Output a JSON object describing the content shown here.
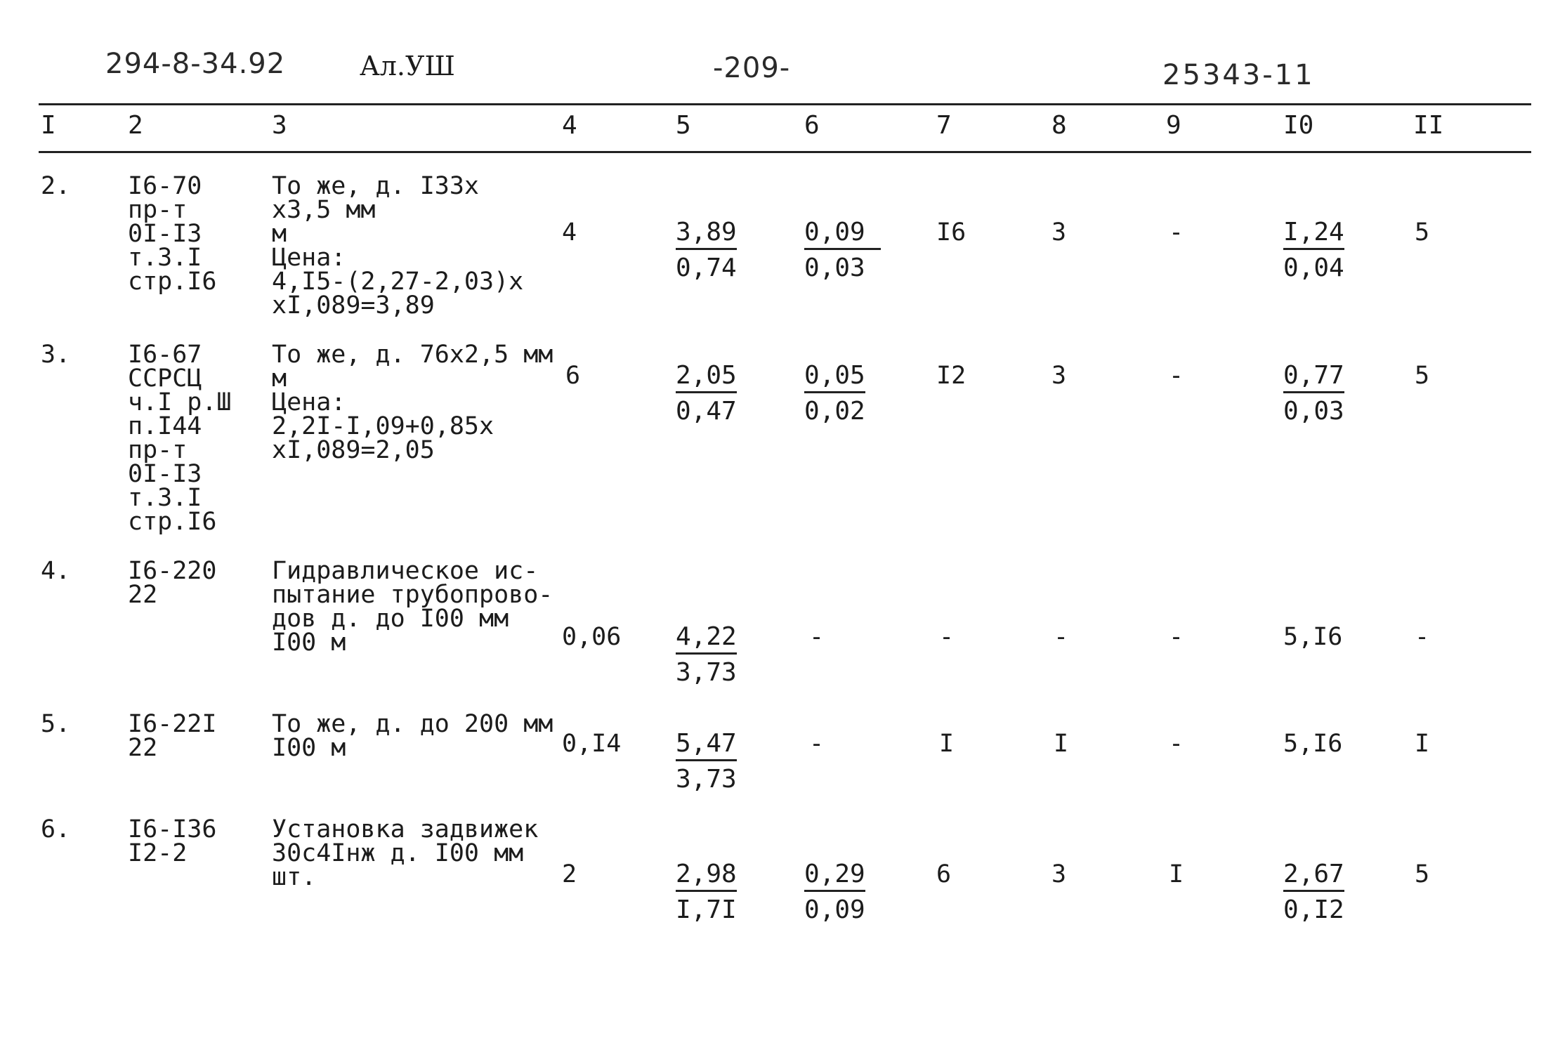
{
  "header": {
    "doc_code": "294-8-34.92",
    "album": "Ал.УШ",
    "page_number": "-209-",
    "sheet_code": "25343-11"
  },
  "columns": [
    "I",
    "2",
    "3",
    "4",
    "5",
    "6",
    "7",
    "8",
    "9",
    "I0",
    "II"
  ],
  "rows": [
    {
      "num": "2.",
      "code": "I6-70\nпр-т\n0I-I3\nт.3.I\nстр.I6",
      "desc": "То же, д. I33х\nх3,5 мм\nм\nЦена:\n4,I5-(2,27-2,03)х\nхI,089=3,89",
      "qty": "4",
      "c5_top": "3,89",
      "c5_bot": "0,74",
      "c6_top": "0,09",
      "c6_bot": "0,03",
      "c7": "I6",
      "c8": "3",
      "c9": "-",
      "c10_top": "I,24",
      "c10_bot": "0,04",
      "c11": "5"
    },
    {
      "num": "3.",
      "code": "I6-67\nССРСЦ\nч.I р.Ш\nп.I44\nпр-т\n0I-I3\nт.3.I\nстр.I6",
      "desc": "То же, д. 76х2,5 мм\nм\nЦена:\n2,2I-I,09+0,85х\nхI,089=2,05",
      "qty": "6",
      "c5_top": "2,05",
      "c5_bot": "0,47",
      "c6_top": "0,05",
      "c6_bot": "0,02",
      "c7": "I2",
      "c8": "3",
      "c9": "-",
      "c10_top": "0,77",
      "c10_bot": "0,03",
      "c11": "5"
    },
    {
      "num": "4.",
      "code": "I6-220\n22",
      "desc": "Гидравлическое ис-\nпытание трубопрово-\nдов д. до I00 мм\nI00 м",
      "qty": "0,06",
      "c5_top": "4,22",
      "c5_bot": "3,73",
      "c6": "-",
      "c7": "-",
      "c8": "-",
      "c9": "-",
      "c10": "5,I6",
      "c11": "-"
    },
    {
      "num": "5.",
      "code": "I6-22I\n22",
      "desc": "То же, д. до 200 мм\nI00 м",
      "qty": "0,I4",
      "c5_top": "5,47",
      "c5_bot": "3,73",
      "c6": "-",
      "c7": "I",
      "c8": "I",
      "c9": "-",
      "c10": "5,I6",
      "c11": "I"
    },
    {
      "num": "6.",
      "code": "I6-I36\nI2-2",
      "desc": "Установка задвижек\n30с4Iнж д. I00 мм\nшт.",
      "qty": "2",
      "c5_top": "2,98",
      "c5_bot": "I,7I",
      "c6_top": "0,29",
      "c6_bot": "0,09",
      "c7": "6",
      "c8": "3",
      "c9": "I",
      "c10_top": "2,67",
      "c10_bot": "0,I2",
      "c11": "5"
    }
  ]
}
